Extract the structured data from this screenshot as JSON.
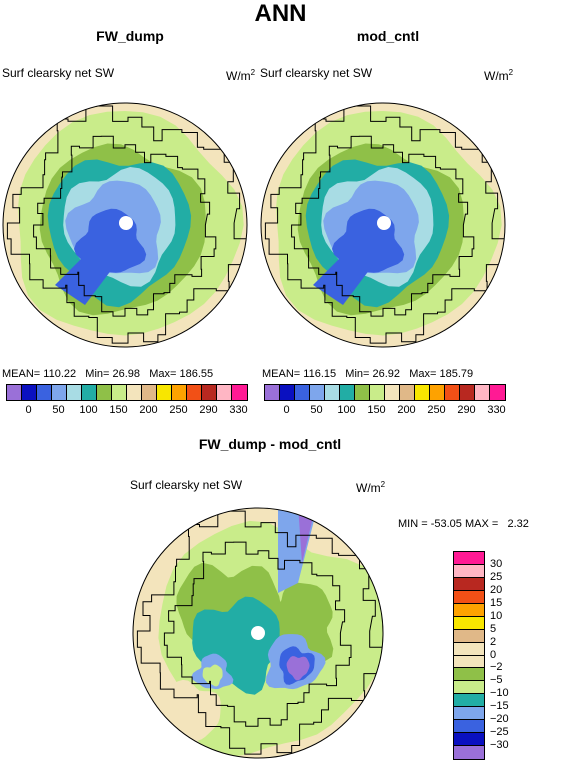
{
  "title": "ANN",
  "panels": [
    {
      "title": "FW_dump",
      "field": "Surf clearsky net SW",
      "units": "W/m",
      "units_sup": "2",
      "mean_label": "MEAN=",
      "mean": "110.22",
      "min_label": "Min=",
      "min": "26.98",
      "max_label": "Max=",
      "max": "186.55"
    },
    {
      "title": "mod_cntl",
      "field": "Surf clearsky net SW",
      "units": "W/m",
      "units_sup": "2",
      "mean_label": "MEAN=",
      "mean": "116.15",
      "min_label": "Min=",
      "min": "26.92",
      "max_label": "Max=",
      "max": "185.79"
    }
  ],
  "diff": {
    "title": "FW_dump - mod_cntl",
    "field": "Surf clearsky net SW",
    "units": "W/m",
    "units_sup": "2",
    "min_label": "MIN =",
    "min": "-53.05",
    "max_label": "MAX =",
    "max": "2.32"
  },
  "chart_data": [
    {
      "type": "heatmap",
      "title": "FW_dump",
      "subtitle": "Surf clearsky net SW",
      "colorbar_ticks": [
        "0",
        "50",
        "100",
        "150",
        "200",
        "250",
        "290",
        "330"
      ],
      "colors": [
        "#9a70d8",
        "#0a10c0",
        "#3a62e0",
        "#7ea6ec",
        "#a8dce4",
        "#22ada5",
        "#8fc048",
        "#c9ec8a",
        "#f3e4bc",
        "#e0b888",
        "#f8e600",
        "#fea200",
        "#f25016",
        "#b82820",
        "#ffb6c4",
        "#ff1a94"
      ]
    },
    {
      "type": "heatmap",
      "title": "mod_cntl",
      "subtitle": "Surf clearsky net SW",
      "colorbar_ticks": [
        "0",
        "50",
        "100",
        "150",
        "200",
        "250",
        "290",
        "330"
      ],
      "colors": [
        "#9a70d8",
        "#0a10c0",
        "#3a62e0",
        "#7ea6ec",
        "#a8dce4",
        "#22ada5",
        "#8fc048",
        "#c9ec8a",
        "#f3e4bc",
        "#e0b888",
        "#f8e600",
        "#fea200",
        "#f25016",
        "#b82820",
        "#ffb6c4",
        "#ff1a94"
      ]
    },
    {
      "type": "heatmap",
      "title": "FW_dump - mod_cntl",
      "subtitle": "Surf clearsky net SW",
      "colorbar_ticks": [
        "30",
        "25",
        "20",
        "15",
        "10",
        "5",
        "2",
        "0",
        "−2",
        "−5",
        "−10",
        "−15",
        "−20",
        "−25",
        "−30"
      ],
      "colors": [
        "#ff1a94",
        "#ffb6c4",
        "#b82820",
        "#f25016",
        "#fea200",
        "#f8e600",
        "#e0b888",
        "#f3e4bc",
        "#8fc048",
        "#c9ec8a",
        "#22ada5",
        "#7ea6ec",
        "#3a62e0",
        "#0a10c0",
        "#9a70d8"
      ]
    }
  ]
}
